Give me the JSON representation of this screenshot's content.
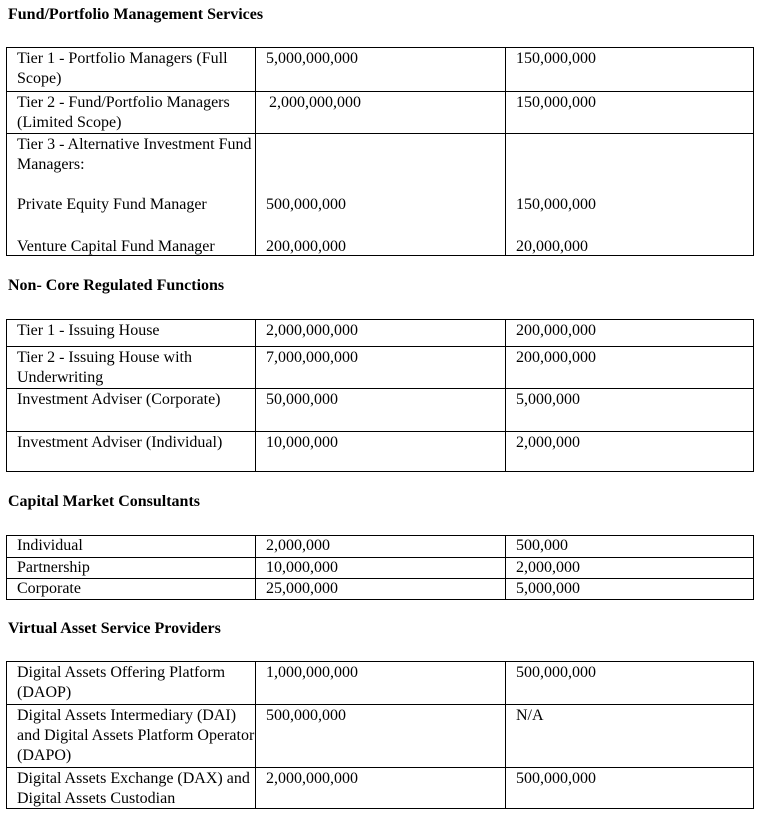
{
  "sections": [
    {
      "title": "Fund/Portfolio Management Services",
      "rows": [
        {
          "label": "Tier 1 - Portfolio Managers (Full Scope)",
          "values": [
            "5,000,000,000",
            "150,000,000"
          ]
        },
        {
          "label": "Tier 2 - Fund/Portfolio Managers (Limited Scope)",
          "values": [
            "2,000,000,000",
            "150,000,000"
          ]
        },
        {
          "label": "Tier 3 - Alternative Investment Fund Managers:",
          "subitems": [
            {
              "label": "Private Equity Fund Manager",
              "values": [
                "500,000,000",
                "150,000,000"
              ]
            },
            {
              "label": "Venture Capital Fund Manager",
              "values": [
                "200,000,000",
                "20,000,000"
              ]
            }
          ]
        }
      ]
    },
    {
      "title": "Non- Core Regulated Functions",
      "rows": [
        {
          "label": "Tier 1 - Issuing House",
          "values": [
            "2,000,000,000",
            "200,000,000"
          ]
        },
        {
          "label": "Tier 2 - Issuing House with Underwriting",
          "values": [
            "7,000,000,000",
            "200,000,000"
          ]
        },
        {
          "label": "Investment Adviser (Corporate)",
          "values": [
            "50,000,000",
            "5,000,000"
          ]
        },
        {
          "label": "Investment Adviser (Individual)",
          "values": [
            "10,000,000",
            "2,000,000"
          ]
        }
      ]
    },
    {
      "title": "Capital Market Consultants",
      "rows": [
        {
          "label": "Individual",
          "values": [
            "2,000,000",
            "500,000"
          ]
        },
        {
          "label": "Partnership",
          "values": [
            "10,000,000",
            "2,000,000"
          ]
        },
        {
          "label": "Corporate",
          "values": [
            "25,000,000",
            "5,000,000"
          ]
        }
      ]
    },
    {
      "title": "Virtual Asset Service Providers",
      "rows": [
        {
          "label": "Digital Assets Offering Platform (DAOP)",
          "values": [
            "1,000,000,000",
            "500,000,000"
          ]
        },
        {
          "label": "Digital Assets Intermediary (DAI) and Digital Assets Platform Operator (DAPO)",
          "values": [
            "500,000,000",
            "N/A"
          ]
        },
        {
          "label": "Digital Assets Exchange (DAX) and Digital Assets Custodian",
          "values": [
            "2,000,000,000",
            "500,000,000"
          ]
        }
      ]
    }
  ]
}
